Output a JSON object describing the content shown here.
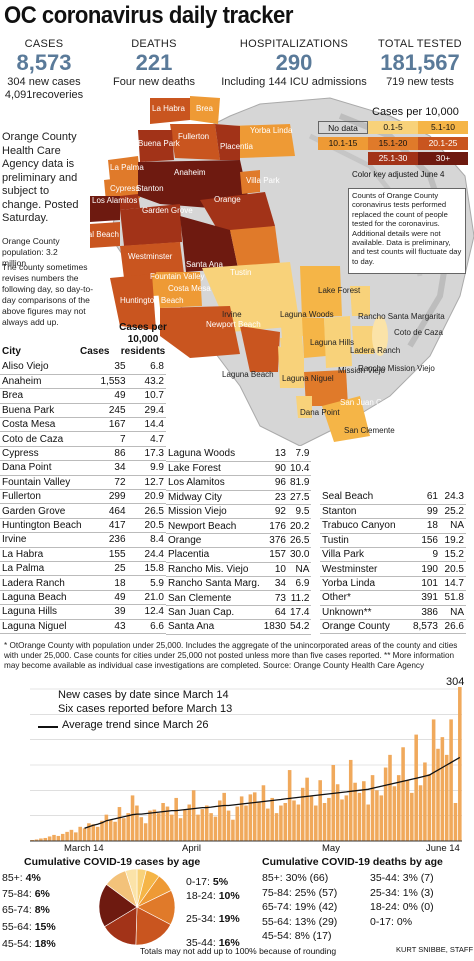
{
  "title": "OC coronavirus daily tracker",
  "stats": [
    {
      "label": "CASES",
      "value": "8,573",
      "sub1": "304 new cases",
      "sub2": "4,091recoveries"
    },
    {
      "label": "DEATHS",
      "value": "221",
      "sub1": "Four new deaths",
      "sub2": ""
    },
    {
      "label": "HOSPITALIZATIONS",
      "value": "290",
      "sub1": "Including 144 ICU admissions",
      "sub2": ""
    },
    {
      "label": "TOTAL TESTED",
      "value": "181,567",
      "sub1": "719 new tests",
      "sub2": ""
    }
  ],
  "side_note": "Orange County Health Care Agency data is preliminary and subject to change. Posted Saturday.",
  "population_note": "Orange County population: 3.2 million",
  "revise_note": "The county sometimes revises numbers the following day, so day-to-day comparisons of the above figures may not always add up.",
  "legend": {
    "title": "Cases per 10,000",
    "bins": [
      {
        "label": "No data",
        "color": "#ffffff"
      },
      {
        "label": "0.1-5",
        "color": "#f8d27a"
      },
      {
        "label": "5.1-10",
        "color": "#f5b547"
      },
      {
        "label": "10.1-15",
        "color": "#ee9a35"
      },
      {
        "label": "15.1-20",
        "color": "#e07a2a"
      },
      {
        "label": "20.1-25",
        "color": "#c9551f"
      },
      {
        "label": "25.1-30",
        "color": "#a23318"
      },
      {
        "label": "30+",
        "color": "#6e1a10"
      }
    ],
    "adjusted": "Color key adjusted June 4"
  },
  "test_note": "Counts of Orange County coronavirus tests performed replaced the count of people tested for the coronavirus. Additional details were not available. Data is preliminary, and test counts will fluctuate day to day.",
  "map_labels": {
    "la_habra": "La Habra",
    "brea": "Brea",
    "fullerton": "Fullerton",
    "buena_park": "Buena Park",
    "placentia": "Placentia",
    "yorba_linda": "Yorba Linda",
    "la_palma": "La Palma",
    "cypress": "Cypress",
    "stanton": "Stanton",
    "anaheim": "Anaheim",
    "villa_park": "Villa Park",
    "los_alamitos": "Los Alamitos",
    "orange": "Orange",
    "garden_grove": "Garden Grove",
    "seal_beach": "Seal Beach",
    "westminster": "Westminster",
    "santa_ana": "Santa Ana",
    "fountain_valley": "Fountain Valley",
    "tustin": "Tustin",
    "huntington_beach": "Huntington Beach",
    "costa_mesa": "Costa Mesa",
    "irvine": "Irvine",
    "lake_forest": "Lake Forest",
    "newport_beach": "Newport Beach",
    "laguna_woods": "Laguna Woods",
    "rancho_santa_margarita": "Rancho Santa Margarita",
    "coto_de_caza": "Coto de Caza",
    "laguna_hills": "Laguna Hills",
    "mission_viejo": "Mission Viejo",
    "ladera_ranch": "Ladera Ranch",
    "rancho_mission_viejo": "Rancho Mission Viejo",
    "laguna_niguel": "Laguna Niguel",
    "laguna_beach": "Laguna Beach",
    "dana_point": "Dana Point",
    "san_juan_capistrano": "San Juan Capistrano",
    "san_clemente": "San Clemente"
  },
  "table_headers": {
    "city": "City",
    "cases": "Cases",
    "per": "Cases per 10,000 residents"
  },
  "cities_col1": [
    [
      "Aliso Viejo",
      "35",
      "6.8"
    ],
    [
      "Anaheim",
      "1,553",
      "43.2"
    ],
    [
      "Brea",
      "49",
      "10.7"
    ],
    [
      "Buena Park",
      "245",
      "29.4"
    ],
    [
      "Costa Mesa",
      "167",
      "14.4"
    ],
    [
      "Coto de Caza",
      "7",
      "4.7"
    ],
    [
      "Cypress",
      "86",
      "17.3"
    ],
    [
      "Dana Point",
      "34",
      "9.9"
    ],
    [
      "Fountain Valley",
      "72",
      "12.7"
    ],
    [
      "Fullerton",
      "299",
      "20.9"
    ],
    [
      "Garden Grove",
      "464",
      "26.5"
    ],
    [
      "Huntington Beach",
      "417",
      "20.5"
    ],
    [
      "Irvine",
      "236",
      "8.4"
    ],
    [
      "La Habra",
      "155",
      "24.4"
    ],
    [
      "La Palma",
      "25",
      "15.8"
    ],
    [
      "Ladera Ranch",
      "18",
      "5.9"
    ],
    [
      "Laguna Beach",
      "49",
      "21.0"
    ],
    [
      "Laguna Hills",
      "39",
      "12.4"
    ],
    [
      "Laguna Niguel",
      "43",
      "6.6"
    ]
  ],
  "cities_col2": [
    [
      "Laguna Woods",
      "13",
      "7.9"
    ],
    [
      "Lake Forest",
      "90",
      "10.4"
    ],
    [
      "Los Alamitos",
      "96",
      "81.9"
    ],
    [
      "Midway City",
      "23",
      "27.5"
    ],
    [
      "Mission Viejo",
      "92",
      "9.5"
    ],
    [
      "Newport Beach",
      "176",
      "20.2"
    ],
    [
      "Orange",
      "376",
      "26.5"
    ],
    [
      "Placentia",
      "157",
      "30.0"
    ],
    [
      "Rancho Mis. Viejo",
      "10",
      "NA"
    ],
    [
      "Rancho Santa Marg.",
      "34",
      "6.9"
    ],
    [
      "San Clemente",
      "73",
      "11.2"
    ],
    [
      "San Juan Cap.",
      "64",
      "17.4"
    ],
    [
      "Santa Ana",
      "1830",
      "54.2"
    ]
  ],
  "cities_col3": [
    [
      "Seal Beach",
      "61",
      "24.3"
    ],
    [
      "Stanton",
      "99",
      "25.2"
    ],
    [
      "Trabuco Canyon",
      "18",
      "NA"
    ],
    [
      "Tustin",
      "156",
      "19.2"
    ],
    [
      "Villa Park",
      "9",
      "15.2"
    ],
    [
      "Westminster",
      "190",
      "20.5"
    ],
    [
      "Yorba Linda",
      "101",
      "14.7"
    ],
    [
      "Other*",
      "391",
      "51.8"
    ],
    [
      "Unknown**",
      "386",
      "NA"
    ],
    [
      "Orange County",
      "8,573",
      "26.6"
    ]
  ],
  "footnote": "* OtOrange County with population under 25,000. Includes the aggregate of the unincorporated areas of the county and cities with under 25,000. Case counts for cities under 25,000 not posted unless more than five cases reported. ** More information may become available as individual case investigations are completed.  Source: Orange County Health Care Agency",
  "chart_data": [
    {
      "type": "bar",
      "title": "",
      "legend": [
        "New cases by date since March 14",
        "Six cases reported before March 13",
        "Average trend since March 26"
      ],
      "x_tick_labels": [
        "March 14",
        "April",
        "May",
        "June 14"
      ],
      "ylim": [
        0,
        300
      ],
      "peak_label": "304",
      "values": [
        2,
        3,
        5,
        6,
        9,
        12,
        10,
        14,
        18,
        22,
        17,
        28,
        25,
        35,
        33,
        28,
        40,
        52,
        42,
        38,
        67,
        45,
        55,
        90,
        70,
        47,
        35,
        60,
        62,
        55,
        75,
        68,
        52,
        85,
        45,
        62,
        72,
        100,
        52,
        63,
        70,
        55,
        48,
        80,
        95,
        60,
        42,
        68,
        88,
        70,
        92,
        96,
        78,
        110,
        64,
        85,
        55,
        70,
        75,
        140,
        80,
        72,
        105,
        125,
        88,
        70,
        120,
        75,
        85,
        150,
        112,
        82,
        90,
        160,
        115,
        95,
        118,
        72,
        130,
        100,
        90,
        145,
        170,
        108,
        130,
        185,
        120,
        95,
        210,
        110,
        155,
        132,
        240,
        182,
        205,
        170,
        240,
        75,
        304
      ],
      "trend": [
        null,
        null,
        null,
        null,
        null,
        null,
        null,
        null,
        null,
        null,
        null,
        null,
        25,
        28,
        31,
        33,
        36,
        40,
        42,
        44,
        46,
        48,
        50,
        52,
        53,
        53,
        54,
        55,
        56,
        57,
        58,
        59,
        60,
        60,
        61,
        62,
        63,
        64,
        65,
        66,
        66,
        67,
        68,
        69,
        70,
        70,
        71,
        72,
        73,
        74,
        75,
        76,
        77,
        78,
        79,
        80,
        81,
        82,
        83,
        84,
        85,
        86,
        87,
        88,
        89,
        90,
        91,
        92,
        93,
        94,
        95,
        96,
        97,
        98,
        99,
        100,
        101,
        102,
        104,
        106,
        108,
        110,
        112,
        114,
        116,
        118,
        120,
        122,
        124,
        126,
        128,
        130,
        135,
        140,
        145,
        150,
        155,
        160,
        165
      ]
    },
    {
      "type": "pie",
      "title": "Cumulative  COVID-19 cases by age",
      "slices": [
        {
          "label": "85+:",
          "value": 4,
          "pct": "4%",
          "color": "#f8d27a"
        },
        {
          "label": "75-84:",
          "value": 6,
          "pct": "6%",
          "color": "#f5b547"
        },
        {
          "label": "65-74:",
          "value": 8,
          "pct": "8%",
          "color": "#ee9a35"
        },
        {
          "label": "55-64:",
          "value": 15,
          "pct": "15%",
          "color": "#e07a2a"
        },
        {
          "label": "45-54:",
          "value": 18,
          "pct": "18%",
          "color": "#c9551f"
        },
        {
          "label": "35-44:",
          "value": 16,
          "pct": "16%",
          "color": "#a23318"
        },
        {
          "label": "25-34:",
          "value": 19,
          "pct": "19%",
          "color": "#6e1a10"
        },
        {
          "label": "18-24:",
          "value": 10,
          "pct": "10%",
          "color": "#f3c27a"
        },
        {
          "label": "0-17:",
          "value": 5,
          "pct": "5%",
          "color": "#fbe3a8"
        }
      ]
    }
  ],
  "deaths_by_age": {
    "title": "Cumulative COVID-19  deaths by age",
    "left": [
      "85+: 30% (66)",
      "75-84: 25% (57)",
      "65-74: 19% (42)",
      "55-64: 13% (29)",
      "45-54: 8% (17)"
    ],
    "right": [
      "35-44: 3% (7)",
      "25-34: 1% (3)",
      "18-24: 0% (0)",
      "0-17: 0%"
    ]
  },
  "rounding_note": "Totals may not add up to 100% because of rounding",
  "credit": "KURT SNIBBE, STAFF"
}
